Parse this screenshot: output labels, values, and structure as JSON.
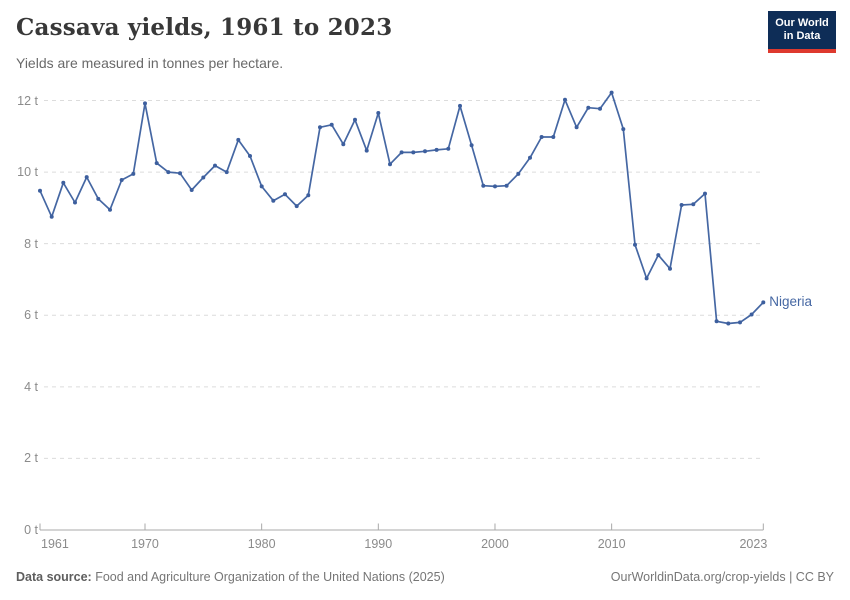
{
  "header": {
    "title": "Cassava yields, 1961 to 2023",
    "subtitle": "Yields are measured in tonnes per hectare.",
    "logo_line1": "Our World",
    "logo_line2": "in Data"
  },
  "chart_data": {
    "type": "line",
    "title": "Cassava yields, 1961 to 2023",
    "unit": "tonnes per hectare",
    "grid": "horizontal dashed",
    "legend_position": "end-of-line label",
    "ylim": [
      0,
      12
    ],
    "yticks": [
      0,
      2,
      4,
      6,
      8,
      10,
      12
    ],
    "ytick_labels": [
      "0 t",
      "2 t",
      "4 t",
      "6 t",
      "8 t",
      "10 t",
      "12 t"
    ],
    "xticks": [
      1961,
      1970,
      1980,
      1990,
      2000,
      2010,
      2023
    ],
    "x_range": [
      1961,
      2023
    ],
    "series": [
      {
        "name": "Nigeria",
        "color": "#4567A3",
        "x": [
          1961,
          1962,
          1963,
          1964,
          1965,
          1966,
          1967,
          1968,
          1969,
          1970,
          1971,
          1972,
          1973,
          1974,
          1975,
          1976,
          1977,
          1978,
          1979,
          1980,
          1981,
          1982,
          1983,
          1984,
          1985,
          1986,
          1987,
          1988,
          1989,
          1990,
          1991,
          1992,
          1993,
          1994,
          1995,
          1996,
          1997,
          1998,
          1999,
          2000,
          2001,
          2002,
          2003,
          2004,
          2005,
          2006,
          2007,
          2008,
          2009,
          2010,
          2011,
          2012,
          2013,
          2014,
          2015,
          2016,
          2017,
          2018,
          2019,
          2020,
          2021,
          2022,
          2023
        ],
        "values": [
          9.48,
          8.75,
          9.7,
          9.15,
          9.86,
          9.25,
          8.95,
          9.78,
          9.95,
          11.92,
          10.25,
          10.0,
          9.97,
          9.5,
          9.85,
          10.18,
          10.0,
          10.9,
          10.45,
          9.6,
          9.2,
          9.38,
          9.05,
          9.35,
          11.25,
          11.32,
          10.78,
          11.46,
          10.6,
          11.65,
          10.22,
          10.55,
          10.55,
          10.58,
          10.62,
          10.65,
          11.85,
          10.75,
          9.62,
          9.6,
          9.62,
          9.95,
          10.4,
          10.98,
          10.98,
          12.02,
          11.25,
          11.8,
          11.77,
          12.22,
          11.2,
          7.97,
          7.03,
          7.68,
          7.3,
          9.08,
          9.1,
          9.4,
          5.83,
          5.77,
          5.8,
          6.02,
          6.36
        ]
      }
    ]
  },
  "footer": {
    "source_label": "Data source:",
    "source_text": "Food and Agriculture Organization of the United Nations (2025)",
    "credit": "OurWorldinData.org/crop-yields | CC BY"
  },
  "colors": {
    "line": "#4567A3",
    "marker": "#3D5F9E",
    "gridline": "#DCDCDC",
    "axis": "#A8A8A8",
    "tick_text": "#8b8b8b",
    "logo_bg": "#0E2D57",
    "logo_red": "#DE392E"
  }
}
